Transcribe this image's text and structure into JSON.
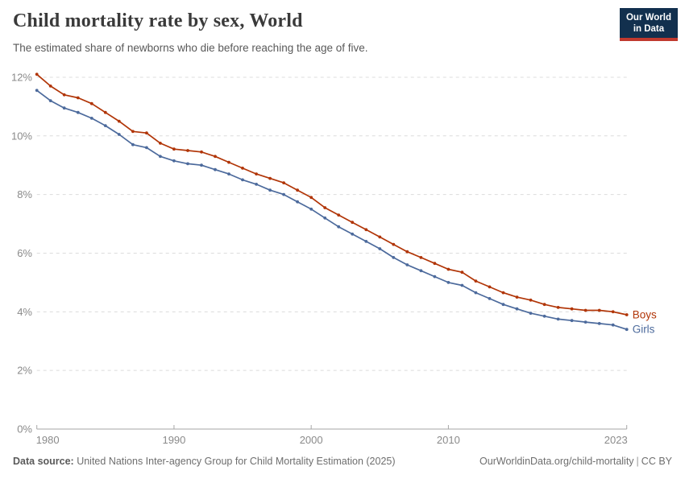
{
  "header": {
    "title": "Child mortality rate by sex, World",
    "subtitle": "The estimated share of newborns who die before reaching the age of five.",
    "logo": {
      "line1": "Our World",
      "line2": "in Data",
      "bg_color": "#12304e",
      "accent_color": "#c0392e"
    }
  },
  "footer": {
    "source_label": "Data source:",
    "source_text": " United Nations Inter-agency Group for Child Mortality Estimation (2025)",
    "link_text": "OurWorldinData.org/child-mortality",
    "separator": "|",
    "license_text": "CC BY"
  },
  "chart_data": {
    "type": "line",
    "title": "Child mortality rate by sex, World",
    "subtitle": "The estimated share of newborns who die before reaching the age of five.",
    "unit": "%",
    "x_years": [
      1980,
      1981,
      1982,
      1983,
      1984,
      1985,
      1986,
      1987,
      1988,
      1989,
      1990,
      1991,
      1992,
      1993,
      1994,
      1995,
      1996,
      1997,
      1998,
      1999,
      2000,
      2001,
      2002,
      2003,
      2004,
      2005,
      2006,
      2007,
      2008,
      2009,
      2010,
      2011,
      2012,
      2013,
      2014,
      2015,
      2016,
      2017,
      2018,
      2019,
      2020,
      2021,
      2022,
      2023
    ],
    "series": [
      {
        "name": "Boys",
        "color": "#b13507",
        "values": [
          12.1,
          11.7,
          11.4,
          11.3,
          11.1,
          10.8,
          10.5,
          10.15,
          10.1,
          9.75,
          9.55,
          9.5,
          9.45,
          9.3,
          9.1,
          8.9,
          8.7,
          8.55,
          8.4,
          8.15,
          7.9,
          7.55,
          7.3,
          7.05,
          6.8,
          6.55,
          6.3,
          6.05,
          5.85,
          5.65,
          5.45,
          5.35,
          5.05,
          4.85,
          4.65,
          4.5,
          4.4,
          4.25,
          4.15,
          4.1,
          4.05,
          4.05,
          4.0,
          3.9
        ]
      },
      {
        "name": "Girls",
        "color": "#4c6a9c",
        "values": [
          11.55,
          11.2,
          10.95,
          10.8,
          10.6,
          10.35,
          10.05,
          9.7,
          9.6,
          9.3,
          9.15,
          9.05,
          9.0,
          8.85,
          8.7,
          8.5,
          8.35,
          8.15,
          8.0,
          7.75,
          7.5,
          7.2,
          6.9,
          6.65,
          6.4,
          6.15,
          5.85,
          5.6,
          5.4,
          5.2,
          5.0,
          4.9,
          4.65,
          4.45,
          4.25,
          4.1,
          3.95,
          3.85,
          3.75,
          3.7,
          3.65,
          3.6,
          3.55,
          3.4
        ]
      }
    ],
    "ylim": [
      0,
      12.4
    ],
    "yticks": [
      {
        "value": 0,
        "label": "0%"
      },
      {
        "value": 2,
        "label": "2%"
      },
      {
        "value": 4,
        "label": "4%"
      },
      {
        "value": 6,
        "label": "6%"
      },
      {
        "value": 8,
        "label": "8%"
      },
      {
        "value": 10,
        "label": "10%"
      },
      {
        "value": 12,
        "label": "12%"
      }
    ],
    "xticks": [
      {
        "value": 1980,
        "label": "1980"
      },
      {
        "value": 1990,
        "label": "1990"
      },
      {
        "value": 2000,
        "label": "2000"
      },
      {
        "value": 2010,
        "label": "2010"
      },
      {
        "value": 2023,
        "label": "2023"
      }
    ],
    "grid": {
      "horizontal": true,
      "style": "dashed",
      "color": "#dcdcdc"
    },
    "axis_color": "#a6a6a6",
    "label_color": "#8a8a8a",
    "legend": "end-of-line-labels",
    "markers": true
  }
}
